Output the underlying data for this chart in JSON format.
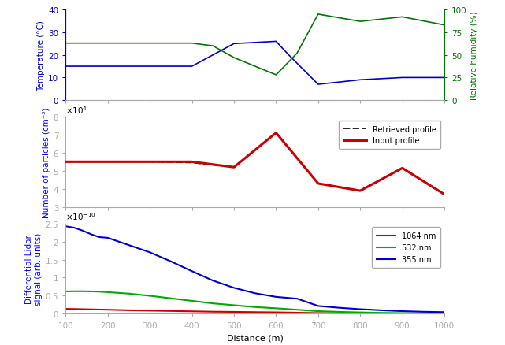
{
  "panel1": {
    "temp_x": [
      100,
      200,
      300,
      400,
      450,
      500,
      600,
      630,
      700,
      800,
      900,
      1000
    ],
    "temp_y": [
      15,
      15,
      15,
      15,
      20,
      25,
      26,
      20,
      7,
      9,
      10,
      10
    ],
    "hum_x": [
      100,
      400,
      450,
      500,
      600,
      650,
      700,
      800,
      900,
      1000
    ],
    "hum_y": [
      63,
      63,
      60,
      47,
      28,
      52,
      95,
      87,
      92,
      83
    ],
    "temp_color": "#0000cc",
    "hum_color": "#007700",
    "ylabel_temp": "Temperature (°C)",
    "ylabel_hum": "Relative humidity (%)",
    "ylim_temp": [
      0,
      40
    ],
    "ylim_hum": [
      0,
      100
    ],
    "xlim": [
      100,
      1000
    ],
    "xticks": [
      100,
      200,
      300,
      400,
      500,
      600,
      700,
      800,
      900,
      1000
    ],
    "yticks_temp": [
      0,
      10,
      20,
      30,
      40
    ],
    "yticks_hum": [
      0,
      25,
      50,
      75,
      100
    ]
  },
  "panel2": {
    "x": [
      100,
      200,
      300,
      400,
      500,
      600,
      700,
      800,
      900,
      1000
    ],
    "y_input": [
      5.5,
      5.5,
      5.5,
      5.5,
      5.2,
      7.1,
      4.3,
      3.9,
      5.15,
      3.7
    ],
    "y_retr": [
      5.5,
      5.5,
      5.5,
      5.45,
      5.2,
      7.1,
      4.3,
      3.9,
      5.15,
      3.7
    ],
    "input_color": "#cc0000",
    "retr_color": "#000000",
    "ylabel": "Number of particles (cm⁻³)",
    "ylim": [
      3,
      8
    ],
    "xlim": [
      100,
      1000
    ],
    "xticks": [
      100,
      200,
      300,
      400,
      500,
      600,
      700,
      800,
      900,
      1000
    ],
    "yticks": [
      3,
      4,
      5,
      6,
      7,
      8
    ],
    "scale_exp": 4,
    "legend_input": "Input profile",
    "legend_retr": "Retrieved profile"
  },
  "panel3": {
    "x": [
      100,
      120,
      140,
      160,
      180,
      200,
      250,
      300,
      350,
      400,
      450,
      500,
      550,
      600,
      650,
      700,
      750,
      800,
      850,
      900,
      950,
      1000
    ],
    "y_1064": [
      0.14,
      0.135,
      0.13,
      0.125,
      0.12,
      0.115,
      0.1,
      0.09,
      0.08,
      0.07,
      0.06,
      0.055,
      0.048,
      0.042,
      0.032,
      0.022,
      0.016,
      0.012,
      0.009,
      0.007,
      0.006,
      0.005
    ],
    "y_532": [
      0.62,
      0.625,
      0.625,
      0.62,
      0.615,
      0.6,
      0.56,
      0.5,
      0.43,
      0.36,
      0.29,
      0.24,
      0.19,
      0.155,
      0.115,
      0.075,
      0.055,
      0.04,
      0.028,
      0.02,
      0.015,
      0.011
    ],
    "y_355": [
      2.42,
      2.38,
      2.3,
      2.2,
      2.12,
      2.1,
      1.9,
      1.7,
      1.45,
      1.18,
      0.92,
      0.72,
      0.57,
      0.47,
      0.42,
      0.22,
      0.17,
      0.13,
      0.1,
      0.075,
      0.058,
      0.048
    ],
    "color_1064": "#cc0000",
    "color_532": "#00aa00",
    "color_355": "#0000cc",
    "ylabel": "Differential Lidar\nsignal (arb. units)",
    "xlabel": "Distance (m)",
    "ylim": [
      0,
      2.5
    ],
    "xlim": [
      100,
      1000
    ],
    "xticks": [
      100,
      200,
      300,
      400,
      500,
      600,
      700,
      800,
      900,
      1000
    ],
    "yticks": [
      0,
      0.5,
      1.0,
      1.5,
      2.0,
      2.5
    ],
    "scale_exp": -10,
    "legend_1064": "1064 nm",
    "legend_532": "532 nm",
    "legend_355": "355 nm"
  },
  "spine_color": "#aaaaaa",
  "background_color": "#ffffff",
  "fig_width": 6.41,
  "fig_height": 4.39,
  "dpi": 100
}
